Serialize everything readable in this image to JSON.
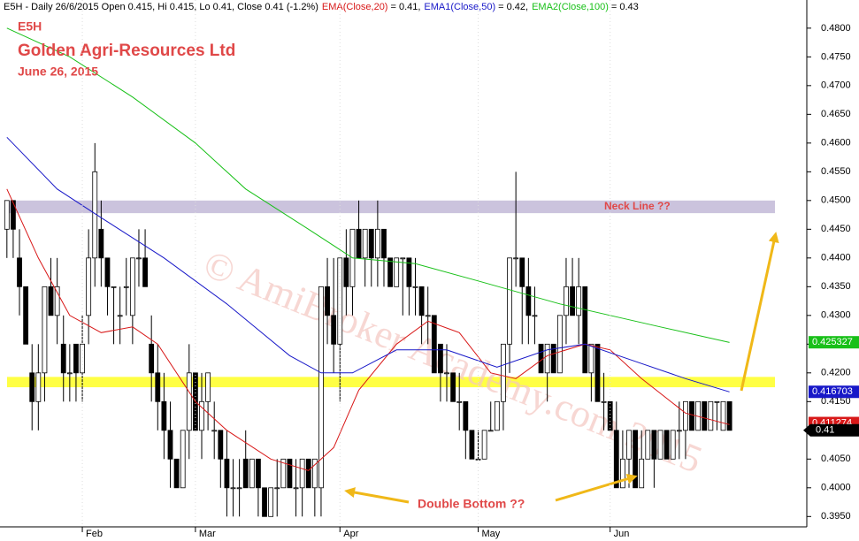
{
  "chart_data": {
    "type": "candlestick",
    "header": "E5H - Daily 26/6/2015 Open 0.415, Hi 0.415, Lo 0.41, Close 0.41 (-1.2%)",
    "annotations": {
      "symbol": "E5H",
      "company": "Golden Agri-Resources Ltd",
      "date": "June 26, 2015",
      "double_bottom": "Double Bottom ??",
      "watermark": "© AmiBroker Academy.com 2015"
    },
    "xlim": [
      -1.1,
      127.3
    ],
    "xticks": [
      {
        "value": 12,
        "label": "Feb"
      },
      {
        "value": 30,
        "label": "Mar"
      },
      {
        "value": 53,
        "label": "Apr"
      },
      {
        "value": 75,
        "label": "May"
      },
      {
        "value": 96,
        "label": "Jun"
      }
    ],
    "ylim": [
      0.3932,
      0.4849
    ],
    "yticks": [
      {
        "value": 0.395,
        "label": "0.3950"
      },
      {
        "value": 0.4,
        "label": "0.4000"
      },
      {
        "value": 0.405,
        "label": "0.4050"
      },
      {
        "value": 0.41,
        "label": "0.4100"
      },
      {
        "value": 0.415,
        "label": "0.4150"
      },
      {
        "value": 0.42,
        "label": "0.4200"
      },
      {
        "value": 0.425,
        "label": "0.4250"
      },
      {
        "value": 0.43,
        "label": "0.4300"
      },
      {
        "value": 0.435,
        "label": "0.4350"
      },
      {
        "value": 0.44,
        "label": "0.4400"
      },
      {
        "value": 0.445,
        "label": "0.4450"
      },
      {
        "value": 0.45,
        "label": "0.4500"
      },
      {
        "value": 0.455,
        "label": "0.4550"
      },
      {
        "value": 0.46,
        "label": "0.4600"
      },
      {
        "value": 0.465,
        "label": "0.4650"
      },
      {
        "value": 0.47,
        "label": "0.4700"
      },
      {
        "value": 0.475,
        "label": "0.4750"
      },
      {
        "value": 0.48,
        "label": "0.4800"
      }
    ],
    "bands": [
      {
        "from": 0.4478,
        "to": 0.45,
        "color": "#cbc3dd",
        "label": "Neck Line ??"
      },
      {
        "from": 0.4175,
        "to": 0.4193,
        "color": "#ffff44"
      }
    ],
    "last_close": 0.41,
    "ohlc": [
      [
        0.445,
        0.45,
        0.44,
        0.45
      ],
      [
        0.45,
        0.45,
        0.44,
        0.445
      ],
      [
        0.44,
        0.445,
        0.43,
        0.435
      ],
      [
        0.435,
        0.435,
        0.425,
        0.425
      ],
      [
        0.42,
        0.425,
        0.41,
        0.415
      ],
      [
        0.415,
        0.425,
        0.41,
        0.42
      ],
      [
        0.42,
        0.435,
        0.415,
        0.435
      ],
      [
        0.435,
        0.44,
        0.43,
        0.43
      ],
      [
        0.43,
        0.44,
        0.425,
        0.435
      ],
      [
        0.425,
        0.43,
        0.415,
        0.42
      ],
      [
        0.42,
        0.425,
        0.415,
        0.42
      ],
      [
        0.425,
        0.425,
        0.415,
        0.42
      ],
      [
        0.42,
        0.43,
        0.415,
        0.425
      ],
      [
        0.43,
        0.445,
        0.425,
        0.44
      ],
      [
        0.44,
        0.46,
        0.435,
        0.455
      ],
      [
        0.445,
        0.45,
        0.435,
        0.44
      ],
      [
        0.44,
        0.44,
        0.43,
        0.435
      ],
      [
        0.435,
        0.435,
        0.425,
        0.435
      ],
      [
        0.43,
        0.435,
        0.425,
        0.43
      ],
      [
        0.435,
        0.44,
        0.43,
        0.435
      ],
      [
        0.43,
        0.44,
        0.425,
        0.44
      ],
      [
        0.44,
        0.445,
        0.435,
        0.44
      ],
      [
        0.44,
        0.445,
        0.435,
        0.435
      ],
      [
        0.425,
        0.43,
        0.415,
        0.42
      ],
      [
        0.42,
        0.425,
        0.41,
        0.415
      ],
      [
        0.415,
        0.42,
        0.405,
        0.41
      ],
      [
        0.41,
        0.415,
        0.4,
        0.405
      ],
      [
        0.405,
        0.405,
        0.4,
        0.4
      ],
      [
        0.4,
        0.41,
        0.4,
        0.41
      ],
      [
        0.41,
        0.425,
        0.405,
        0.42
      ],
      [
        0.42,
        0.42,
        0.41,
        0.41
      ],
      [
        0.41,
        0.42,
        0.405,
        0.415
      ],
      [
        0.415,
        0.42,
        0.41,
        0.42
      ],
      [
        0.41,
        0.415,
        0.405,
        0.41
      ],
      [
        0.41,
        0.41,
        0.4,
        0.405
      ],
      [
        0.405,
        0.41,
        0.395,
        0.4
      ],
      [
        0.4,
        0.405,
        0.395,
        0.4
      ],
      [
        0.4,
        0.405,
        0.395,
        0.4
      ],
      [
        0.405,
        0.41,
        0.4,
        0.4
      ],
      [
        0.4,
        0.405,
        0.4,
        0.405
      ],
      [
        0.405,
        0.405,
        0.395,
        0.4
      ],
      [
        0.4,
        0.4,
        0.395,
        0.395
      ],
      [
        0.395,
        0.4,
        0.395,
        0.4
      ],
      [
        0.4,
        0.405,
        0.395,
        0.4
      ],
      [
        0.4,
        0.405,
        0.4,
        0.405
      ],
      [
        0.405,
        0.405,
        0.4,
        0.4
      ],
      [
        0.4,
        0.405,
        0.395,
        0.4
      ],
      [
        0.4,
        0.405,
        0.395,
        0.405
      ],
      [
        0.405,
        0.405,
        0.4,
        0.4
      ],
      [
        0.4,
        0.405,
        0.395,
        0.405
      ],
      [
        0.4,
        0.435,
        0.395,
        0.435
      ],
      [
        0.435,
        0.44,
        0.425,
        0.43
      ],
      [
        0.43,
        0.44,
        0.42,
        0.425
      ],
      [
        0.425,
        0.44,
        0.415,
        0.44
      ],
      [
        0.44,
        0.445,
        0.43,
        0.435
      ],
      [
        0.435,
        0.445,
        0.43,
        0.445
      ],
      [
        0.445,
        0.45,
        0.44,
        0.44
      ],
      [
        0.44,
        0.445,
        0.435,
        0.445
      ],
      [
        0.445,
        0.445,
        0.435,
        0.44
      ],
      [
        0.44,
        0.45,
        0.435,
        0.445
      ],
      [
        0.445,
        0.445,
        0.435,
        0.44
      ],
      [
        0.44,
        0.44,
        0.435,
        0.435
      ],
      [
        0.435,
        0.44,
        0.435,
        0.44
      ],
      [
        0.44,
        0.44,
        0.43,
        0.44
      ],
      [
        0.44,
        0.44,
        0.43,
        0.435
      ],
      [
        0.435,
        0.44,
        0.43,
        0.435
      ],
      [
        0.435,
        0.435,
        0.425,
        0.43
      ],
      [
        0.43,
        0.435,
        0.425,
        0.43
      ],
      [
        0.43,
        0.43,
        0.42,
        0.42
      ],
      [
        0.425,
        0.425,
        0.415,
        0.42
      ],
      [
        0.42,
        0.425,
        0.415,
        0.42
      ],
      [
        0.42,
        0.42,
        0.415,
        0.415
      ],
      [
        0.415,
        0.42,
        0.41,
        0.415
      ],
      [
        0.415,
        0.415,
        0.405,
        0.41
      ],
      [
        0.41,
        0.41,
        0.405,
        0.405
      ],
      [
        0.405,
        0.41,
        0.405,
        0.405
      ],
      [
        0.405,
        0.41,
        0.405,
        0.41
      ],
      [
        0.41,
        0.415,
        0.41,
        0.41
      ],
      [
        0.41,
        0.415,
        0.41,
        0.415
      ],
      [
        0.415,
        0.425,
        0.41,
        0.425
      ],
      [
        0.425,
        0.44,
        0.42,
        0.44
      ],
      [
        0.44,
        0.455,
        0.435,
        0.44
      ],
      [
        0.44,
        0.44,
        0.425,
        0.435
      ],
      [
        0.435,
        0.44,
        0.425,
        0.43
      ],
      [
        0.43,
        0.435,
        0.425,
        0.43
      ],
      [
        0.425,
        0.425,
        0.42,
        0.42
      ],
      [
        0.42,
        0.425,
        0.415,
        0.425
      ],
      [
        0.425,
        0.425,
        0.42,
        0.42
      ],
      [
        0.42,
        0.43,
        0.42,
        0.43
      ],
      [
        0.43,
        0.44,
        0.425,
        0.435
      ],
      [
        0.435,
        0.44,
        0.43,
        0.43
      ],
      [
        0.43,
        0.44,
        0.425,
        0.435
      ],
      [
        0.435,
        0.435,
        0.42,
        0.42
      ],
      [
        0.42,
        0.425,
        0.415,
        0.425
      ],
      [
        0.425,
        0.425,
        0.415,
        0.415
      ],
      [
        0.415,
        0.42,
        0.41,
        0.415
      ],
      [
        0.415,
        0.415,
        0.41,
        0.41
      ],
      [
        0.41,
        0.415,
        0.4,
        0.4
      ],
      [
        0.4,
        0.41,
        0.4,
        0.405
      ],
      [
        0.405,
        0.41,
        0.4,
        0.41
      ],
      [
        0.41,
        0.41,
        0.4,
        0.4
      ],
      [
        0.4,
        0.41,
        0.4,
        0.405
      ],
      [
        0.405,
        0.41,
        0.405,
        0.41
      ],
      [
        0.41,
        0.41,
        0.4,
        0.405
      ],
      [
        0.405,
        0.41,
        0.405,
        0.41
      ],
      [
        0.41,
        0.41,
        0.405,
        0.405
      ],
      [
        0.405,
        0.41,
        0.405,
        0.41
      ],
      [
        0.41,
        0.415,
        0.405,
        0.41
      ],
      [
        0.41,
        0.415,
        0.405,
        0.415
      ],
      [
        0.415,
        0.415,
        0.41,
        0.41
      ],
      [
        0.41,
        0.415,
        0.41,
        0.415
      ],
      [
        0.415,
        0.415,
        0.41,
        0.41
      ],
      [
        0.41,
        0.415,
        0.41,
        0.415
      ],
      [
        0.415,
        0.415,
        0.41,
        0.415
      ],
      [
        0.41,
        0.415,
        0.41,
        0.415
      ],
      [
        0.415,
        0.415,
        0.41,
        0.41
      ]
    ],
    "series": [
      {
        "name": "EMA(Close,20)",
        "header_value": "= 0.41,",
        "color": "#d81818",
        "last_value": 0.411274,
        "x": [
          0,
          5,
          10,
          15,
          20,
          24,
          30,
          35,
          42,
          48,
          52,
          56,
          62,
          67,
          72,
          77,
          81,
          86,
          92,
          96,
          101,
          108,
          115
        ],
        "values": [
          0.452,
          0.44,
          0.43,
          0.427,
          0.428,
          0.425,
          0.415,
          0.41,
          0.405,
          0.403,
          0.407,
          0.417,
          0.425,
          0.429,
          0.427,
          0.42,
          0.419,
          0.423,
          0.425,
          0.424,
          0.419,
          0.413,
          0.411
        ]
      },
      {
        "name": "EMA1(Close,50)",
        "header_value": "= 0.42,",
        "color": "#1818c8",
        "last_value": 0.416703,
        "x": [
          0,
          8,
          15,
          25,
          35,
          45,
          50,
          55,
          62,
          70,
          78,
          86,
          92,
          100,
          108,
          115
        ],
        "values": [
          0.461,
          0.452,
          0.447,
          0.44,
          0.432,
          0.423,
          0.42,
          0.42,
          0.424,
          0.424,
          0.421,
          0.424,
          0.425,
          0.422,
          0.419,
          0.4167
        ]
      },
      {
        "name": "EMA2(Close,100)",
        "header_value": "= 0.43",
        "color": "#18c018",
        "last_value": 0.425327,
        "x": [
          0,
          10,
          20,
          30,
          38,
          48,
          55,
          65,
          75,
          88,
          96,
          104,
          115
        ],
        "values": [
          0.48,
          0.475,
          0.468,
          0.46,
          0.452,
          0.445,
          0.44,
          0.439,
          0.436,
          0.432,
          0.43,
          0.428,
          0.4253
        ]
      }
    ]
  }
}
